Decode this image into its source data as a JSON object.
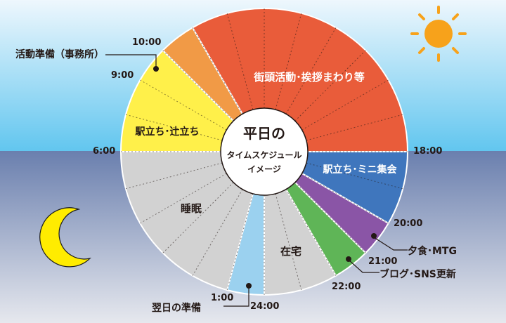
{
  "center": {
    "title": "平日の",
    "line2": "タイムスケジュール",
    "line3": "イメージ"
  },
  "schedule": [
    {
      "key": "sleep",
      "label": "睡眠",
      "start": 0,
      "end": 6,
      "color": "#d2d2d2"
    },
    {
      "key": "station1",
      "label": "駅立ち･辻立ち",
      "start": 6,
      "end": 9,
      "color": "#fff04a"
    },
    {
      "key": "office",
      "label": "活動準備（事務所）",
      "start": 9,
      "end": 10,
      "color": "#f19a46"
    },
    {
      "key": "street",
      "label": "街頭活動･挨拶まわり等",
      "start": 10,
      "end": 18,
      "color": "#e95c3a"
    },
    {
      "key": "station2",
      "label": "駅立ち･ミニ集会",
      "start": 18,
      "end": 20,
      "color": "#3f76bd"
    },
    {
      "key": "dinner",
      "label": "夕食･MTG",
      "start": 20,
      "end": 21,
      "color": "#8a55a6"
    },
    {
      "key": "blog",
      "label": "ブログ･SNS更新",
      "start": 21,
      "end": 22,
      "color": "#5fb557"
    },
    {
      "key": "home",
      "label": "在宅",
      "start": 22,
      "end": 24,
      "color": "#d2d2d2"
    },
    {
      "key": "prep",
      "label": "翌日の準備",
      "start": 24,
      "end": 25,
      "color": "#9bd1ef"
    }
  ],
  "time_labels": {
    "t0600": "6:00",
    "t0900": "9:00",
    "t1000": "10:00",
    "t1800": "18:00",
    "t2000": "20:00",
    "t2100": "21:00",
    "t2200": "22:00",
    "t2400": "24:00",
    "t0100": "1:00"
  },
  "colors": {
    "sky_top": "#eef7fd",
    "sky_bottom": "#62c6ef",
    "night_top": "#6a7fae",
    "night_bottom": "#e6e8ee",
    "sun": "#f7a21b",
    "moon": "#ffec00"
  },
  "icons": {
    "sun": "sun-icon",
    "moon": "moon-icon"
  }
}
